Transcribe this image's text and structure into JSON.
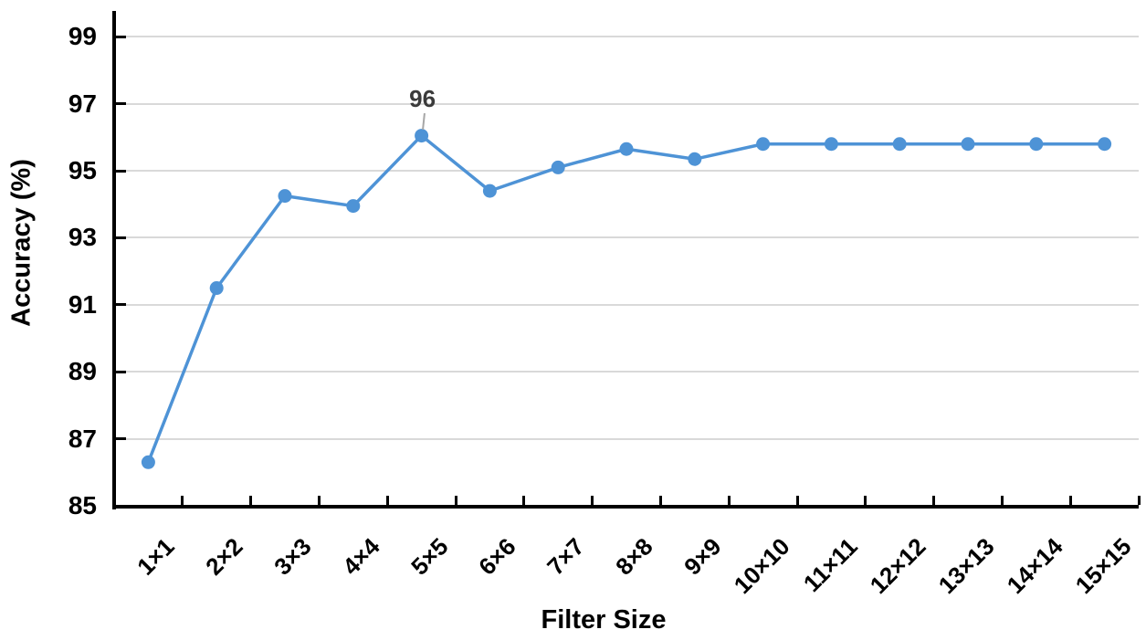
{
  "chart_data": {
    "type": "line",
    "title": "",
    "xlabel": "Filter Size",
    "ylabel": "Accuracy (%)",
    "categories": [
      "1×1",
      "2×2",
      "3×3",
      "4×4",
      "5×5",
      "6×6",
      "7×7",
      "8×8",
      "9×9",
      "10×10",
      "11×11",
      "12×12",
      "13×13",
      "14×14",
      "15×15"
    ],
    "series": [
      {
        "name": "Accuracy",
        "values": [
          86.3,
          91.5,
          94.25,
          93.95,
          96.05,
          94.4,
          95.1,
          95.65,
          95.35,
          95.8,
          95.8,
          95.8,
          95.8,
          95.8,
          95.8
        ]
      }
    ],
    "ylim": [
      85,
      100
    ],
    "yticks": [
      85,
      87,
      89,
      91,
      93,
      95,
      97,
      99
    ],
    "grid": "horizontal-major",
    "legend": "none",
    "annotations": [
      {
        "text": "96",
        "category": "5×5",
        "category_index": 4,
        "value": 96.05
      }
    ],
    "colors": {
      "line": "#4E93D6",
      "marker": "#4E93D6",
      "grid": "#D9D9D9",
      "axis": "#000000",
      "tick_label": "#000000",
      "data_label": "#3B3B3B",
      "leader_line": "#A6A6A6",
      "background": "#FFFFFF"
    }
  }
}
